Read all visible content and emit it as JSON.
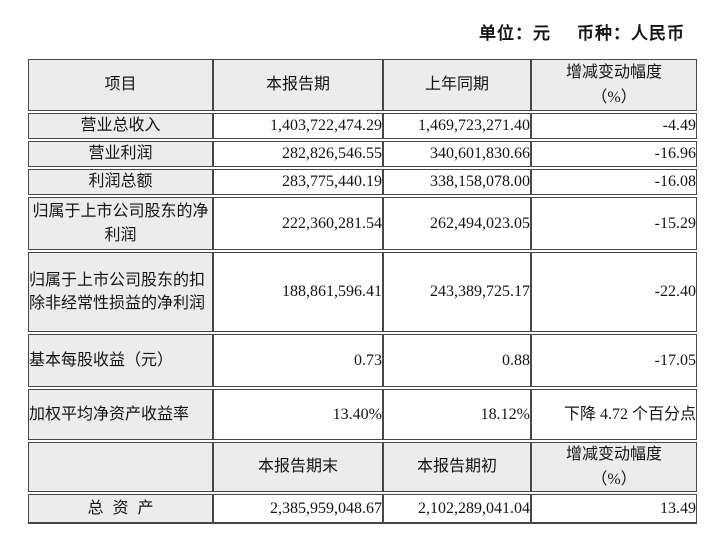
{
  "page": {
    "unit_label": "单位：元",
    "currency_label": "币种：人民币"
  },
  "colors": {
    "header_fill": "#ececec",
    "border": "#474747",
    "text": "#141414"
  },
  "table": {
    "headers": {
      "item": "项目",
      "current": "本报告期",
      "prior": "上年同期",
      "change_line1": "增减变动幅度",
      "change_line2": "（%）"
    },
    "rows": [
      {
        "label": "营业总收入",
        "current": "1,403,722,474.29",
        "prior": "1,469,723,271.40",
        "change": "-4.49"
      },
      {
        "label": "营业利润",
        "current": "282,826,546.55",
        "prior": "340,601,830.66",
        "change": "-16.96"
      },
      {
        "label": "利润总额",
        "current": "283,775,440.19",
        "prior": "338,158,078.00",
        "change": "-16.08"
      },
      {
        "label": "归属于上市公司股东的净利润",
        "current": "222,360,281.54",
        "prior": "262,494,023.05",
        "change": "-15.29"
      },
      {
        "label": "归属于上市公司股东的扣除非经常性损益的净利润",
        "current": "188,861,596.41",
        "prior": "243,389,725.17",
        "change": "-22.40"
      },
      {
        "label": "基本每股收益（元）",
        "current": "0.73",
        "prior": "0.88",
        "change": "-17.05"
      },
      {
        "label": "加权平均净资产收益率",
        "current": "13.40%",
        "prior": "18.12%",
        "change": "下降 4.72 个百分点"
      }
    ],
    "headers2": {
      "current": "本报告期末",
      "prior": "本报告期初",
      "change_line1": "增减变动幅度",
      "change_line2": "（%）"
    },
    "total_row": {
      "label": "总 资 产",
      "current": "2,385,959,048.67",
      "prior": "2,102,289,041.04",
      "change": "13.49"
    }
  }
}
